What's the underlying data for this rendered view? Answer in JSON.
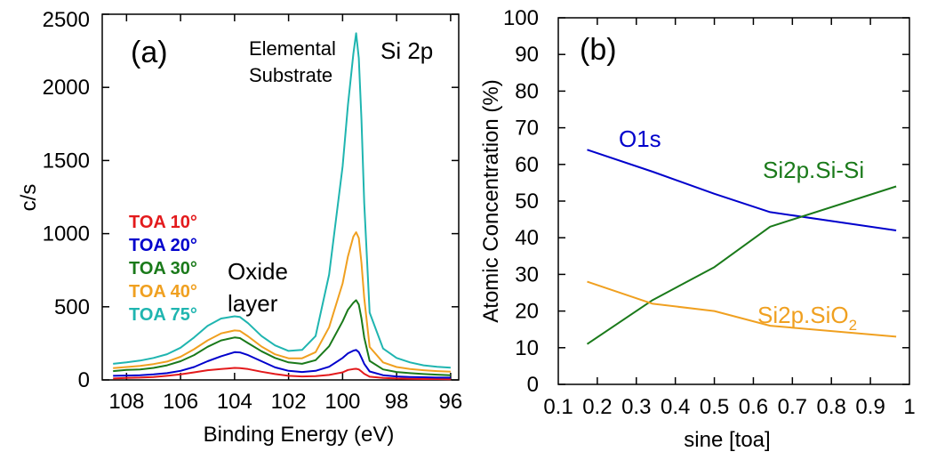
{
  "chart_data": [
    {
      "type": "line",
      "panel_label": "(a)",
      "title": "Si 2p",
      "xlabel": "Binding Energy (eV)",
      "ylabel": "c/s",
      "xlim": [
        108.9,
        95.7
      ],
      "ylim": [
        0,
        2500
      ],
      "x_ticks": [
        "108",
        "106",
        "104",
        "102",
        "100",
        "98",
        "96"
      ],
      "y_ticks": [
        "0",
        "500",
        "1000",
        "1500",
        "2000",
        "2500"
      ],
      "annotations": {
        "substrate_line1": "Elemental",
        "substrate_line2": "Substrate",
        "oxide_line1": "Oxide",
        "oxide_line2": "layer"
      },
      "x": [
        108.5,
        108,
        107.5,
        107,
        106.5,
        106,
        105.5,
        105,
        104.5,
        104,
        103.8,
        103.5,
        103,
        102.5,
        102,
        101.5,
        101,
        100.5,
        100,
        99.8,
        99.6,
        99.5,
        99.4,
        99.3,
        99.2,
        99,
        98.5,
        98,
        97.5,
        97,
        96.5,
        96
      ],
      "series": [
        {
          "name": "TOA 10°",
          "color": "#e31a1c",
          "values": [
            10,
            14,
            16,
            20,
            28,
            38,
            52,
            66,
            74,
            82,
            80,
            74,
            56,
            40,
            28,
            24,
            26,
            34,
            52,
            68,
            74,
            76,
            72,
            58,
            42,
            22,
            14,
            10,
            8,
            6,
            6,
            5
          ]
        },
        {
          "name": "TOA 20°",
          "color": "#0000cc",
          "values": [
            28,
            30,
            32,
            38,
            46,
            62,
            88,
            128,
            162,
            190,
            188,
            170,
            128,
            86,
            62,
            54,
            62,
            90,
            150,
            182,
            200,
            205,
            190,
            152,
            110,
            58,
            32,
            24,
            20,
            18,
            16,
            15
          ]
        },
        {
          "name": "TOA 30°",
          "color": "#1a7a1a",
          "values": [
            60,
            68,
            72,
            82,
            100,
            128,
            170,
            226,
            270,
            290,
            286,
            252,
            196,
            150,
            120,
            110,
            135,
            230,
            400,
            480,
            528,
            545,
            515,
            420,
            290,
            130,
            72,
            54,
            46,
            40,
            36,
            32
          ]
        },
        {
          "name": "TOA 40°",
          "color": "#f0a020",
          "values": [
            80,
            88,
            96,
            108,
            125,
            158,
            210,
            270,
            318,
            338,
            335,
            298,
            228,
            175,
            148,
            148,
            190,
            360,
            660,
            845,
            980,
            1010,
            970,
            800,
            560,
            225,
            120,
            88,
            74,
            66,
            60,
            56
          ]
        },
        {
          "name": "TOA 75°",
          "color": "#1fb5b0",
          "values": [
            110,
            120,
            132,
            150,
            176,
            220,
            290,
            370,
            420,
            435,
            430,
            388,
            300,
            236,
            198,
            205,
            300,
            720,
            1460,
            1880,
            2230,
            2370,
            2200,
            1780,
            1210,
            460,
            215,
            150,
            120,
            100,
            90,
            84
          ]
        }
      ]
    },
    {
      "type": "line",
      "panel_label": "(b)",
      "xlabel": "sine [toa]",
      "ylabel": "Atomic Concentration (%)",
      "xlim": [
        0.1,
        1.0
      ],
      "ylim": [
        0,
        100
      ],
      "x_ticks": [
        "0.1",
        "0.2",
        "0.3",
        "0.4",
        "0.5",
        "0.6",
        "0.7",
        "0.8",
        "0.9",
        "1"
      ],
      "y_ticks": [
        "0",
        "10",
        "20",
        "30",
        "40",
        "50",
        "60",
        "70",
        "80",
        "90",
        "100"
      ],
      "series": [
        {
          "name": "O1s",
          "label_parts": [
            "O1s",
            ""
          ],
          "color": "#0000cc",
          "x": [
            0.174,
            0.342,
            0.5,
            0.643,
            0.966
          ],
          "values": [
            64,
            58,
            52,
            47,
            42
          ]
        },
        {
          "name": "Si2p.Si-Si",
          "label_parts": [
            "Si2p.Si-Si",
            ""
          ],
          "color": "#1a7a1a",
          "x": [
            0.174,
            0.342,
            0.5,
            0.643,
            0.966
          ],
          "values": [
            11,
            23,
            32,
            43,
            54
          ]
        },
        {
          "name": "Si2p.SiO2",
          "label_parts": [
            "Si2p.SiO",
            "2"
          ],
          "color": "#f0a020",
          "x": [
            0.174,
            0.342,
            0.5,
            0.643,
            0.966
          ],
          "values": [
            28,
            22,
            20,
            16,
            13
          ]
        }
      ]
    }
  ]
}
